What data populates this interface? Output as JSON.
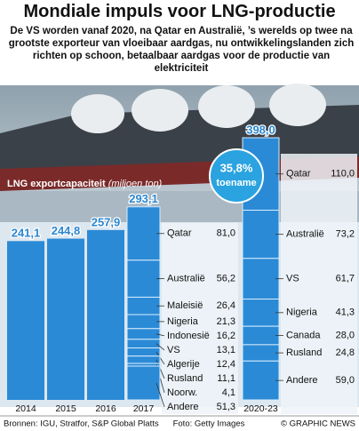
{
  "chart_data": {
    "type": "bar",
    "title": "Mondiale impuls voor LNG-productie",
    "subtitle": "De VS worden vanaf 2020, na Qatar en Australië, ’s werelds op twee na grootste exporteur van vloeibaar aardgas, nu ontwikkelingslanden zich richten op schoon, betaalbaar aardgas voor de productie van elektriciteit",
    "y_label": "LNG exportcapaciteit",
    "y_unit": "(miljoen ton)",
    "color": "#2b8ad6",
    "categories": [
      "2014",
      "2015",
      "2016",
      "2017",
      "2020-23"
    ],
    "values": [
      241.1,
      244.8,
      257.9,
      293.1,
      398.0
    ],
    "value_labels": [
      "241,1",
      "244,8",
      "257,9",
      "293,1",
      "398,0"
    ],
    "breakdowns": {
      "2017": {
        "names": [
          "Qatar",
          "Australië",
          "Maleisië",
          "Nigeria",
          "Indonesië",
          "VS",
          "Algerije",
          "Rusland",
          "Noorw.",
          "Andere"
        ],
        "values": [
          81.0,
          56.2,
          26.4,
          21.3,
          16.2,
          13.1,
          12.4,
          11.1,
          4.1,
          51.3
        ],
        "value_labels": [
          "81,0",
          "56,2",
          "26,4",
          "21,3",
          "16,2",
          "13,1",
          "12,4",
          "11,1",
          "4,1",
          "51,3"
        ]
      },
      "2020-23": {
        "names": [
          "Qatar",
          "Australië",
          "VS",
          "Nigeria",
          "Canada",
          "Rusland",
          "Andere"
        ],
        "values": [
          110.0,
          73.2,
          61.7,
          41.3,
          28.0,
          24.8,
          59.0
        ],
        "value_labels": [
          "110,0",
          "73,2",
          "61,7",
          "41,3",
          "28,0",
          "24,8",
          "59,0"
        ]
      }
    },
    "annotation": [
      "35,8%",
      "toename"
    ],
    "sources": "Bronnen: IGU, Stratfor, S&P Global Platts",
    "photo_credit": "Foto: Getty Images",
    "copyright": "© GRAPHIC NEWS"
  }
}
